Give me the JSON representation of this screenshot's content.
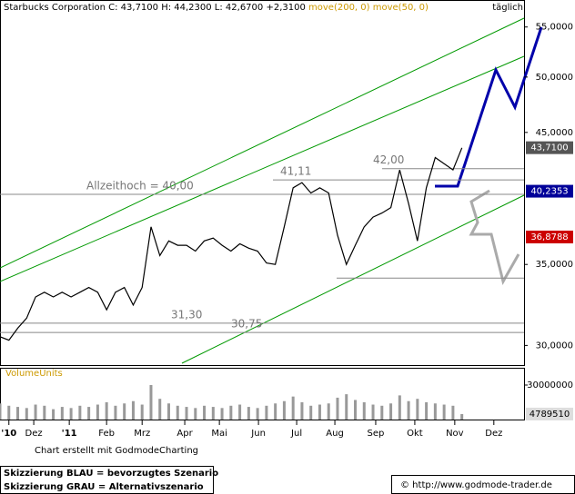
{
  "chart_data": {
    "type": "line",
    "header": {
      "name": "Starbucks Corporation",
      "quote": "C: 43,7100 H: 44,2300 L: 42,6700 +2,3100",
      "ma200": "move(200, 0)",
      "ma50": "move(50, 0)",
      "interval": "täglich"
    },
    "log_scale": true,
    "x": [
      0,
      1,
      2,
      3,
      4,
      5,
      6,
      7,
      8,
      9,
      10,
      11,
      12,
      13,
      14,
      15,
      16,
      17,
      18,
      19,
      20,
      21,
      22,
      23,
      24,
      25,
      26,
      27,
      28,
      29,
      30,
      31,
      32,
      33,
      34,
      35,
      36,
      37,
      38,
      39,
      40,
      41,
      42,
      43,
      44,
      45,
      46,
      47,
      48,
      49,
      50,
      51,
      52
    ],
    "xlim": [
      0,
      59
    ],
    "xticks": [
      {
        "value": 1.0,
        "label": "'10"
      },
      {
        "value": 3.8,
        "label": "Dez"
      },
      {
        "value": 7.8,
        "label": "'11"
      },
      {
        "value": 12,
        "label": "Feb"
      },
      {
        "value": 16,
        "label": "Mrz"
      },
      {
        "value": 20.8,
        "label": "Apr"
      },
      {
        "value": 24.7,
        "label": "Mai"
      },
      {
        "value": 29.1,
        "label": "Jun"
      },
      {
        "value": 33.4,
        "label": "Jul"
      },
      {
        "value": 37.7,
        "label": "Aug"
      },
      {
        "value": 42.3,
        "label": "Sep"
      },
      {
        "value": 46.7,
        "label": "Okt"
      },
      {
        "value": 51.2,
        "label": "Nov"
      },
      {
        "value": 55.6,
        "label": "Dez"
      }
    ],
    "ylim": [
      28.9,
      57.9
    ],
    "yticks": [
      {
        "value": 30,
        "label": "30,0000"
      },
      {
        "value": 35,
        "label": "35,0000"
      },
      {
        "value": 45,
        "label": "45,0000"
      },
      {
        "value": 50,
        "label": "50,0000"
      },
      {
        "value": 55,
        "label": "55,0000"
      }
    ],
    "series": [
      {
        "name": "Starbucks Corporation",
        "color": "#000000",
        "values": [
          30.5,
          30.3,
          31.0,
          31.6,
          32.9,
          33.2,
          32.9,
          33.2,
          32.9,
          33.2,
          33.5,
          33.2,
          32.1,
          33.2,
          33.5,
          32.4,
          33.5,
          37.6,
          35.6,
          36.6,
          36.3,
          36.3,
          35.9,
          36.6,
          36.8,
          36.3,
          35.9,
          36.4,
          36.1,
          35.9,
          35.1,
          35.0,
          37.6,
          40.5,
          40.9,
          40.1,
          40.5,
          40.1,
          37.0,
          35.0,
          36.3,
          37.6,
          38.3,
          38.6,
          39.0,
          41.9,
          39.3,
          36.6,
          40.5,
          42.9,
          42.4,
          41.9,
          43.7
        ]
      },
      {
        "name": "move(200, 0)",
        "color": "#cc0000",
        "values": [
          null,
          null,
          null,
          null,
          null,
          null,
          null,
          null,
          null,
          null,
          null,
          null,
          null,
          null,
          null,
          29.0,
          null,
          null,
          29.4,
          null,
          null,
          29.9,
          null,
          null,
          30.5,
          null,
          null,
          31.2,
          null,
          null,
          31.8,
          null,
          null,
          32.5,
          null,
          null,
          33.8,
          null,
          null,
          34.2,
          null,
          null,
          35.0,
          null,
          null,
          35.6,
          null,
          null,
          36.3,
          null,
          36.8,
          null,
          null
        ]
      },
      {
        "name": "move(50, 0)",
        "color": "#000099",
        "values": [
          null,
          null,
          30.1,
          null,
          null,
          null,
          31.2,
          null,
          null,
          null,
          32.4,
          null,
          null,
          null,
          null,
          32.9,
          null,
          33.7,
          null,
          null,
          34.3,
          null,
          null,
          null,
          null,
          35.1,
          null,
          null,
          null,
          null,
          35.8,
          null,
          36.6,
          null,
          null,
          37.8,
          null,
          null,
          38.0,
          null,
          null,
          38.3,
          null,
          null,
          38.5,
          null,
          null,
          39.4,
          null,
          null,
          40.2353,
          null,
          null
        ]
      }
    ],
    "last_labels": [
      {
        "value": 43.71,
        "label": "43,7100",
        "color": "#555555"
      },
      {
        "value": 40.2353,
        "label": "40,2353",
        "color": "#000099"
      },
      {
        "value": 36.8788,
        "label": "36,8788",
        "color": "#cc0000"
      }
    ],
    "levels": [
      {
        "value": 40.0,
        "label": "Allzeithoch  =  40,00"
      },
      {
        "value": 41.11,
        "label": "41,11"
      },
      {
        "value": 42.0,
        "label": "42,00"
      },
      {
        "value": 31.3,
        "label": "31,30"
      },
      {
        "value": 30.75,
        "label": "30,75"
      },
      {
        "value": 34.1
      }
    ],
    "volume": {
      "title": "VolumeUnits",
      "values": [
        14000000,
        12000000,
        11000000,
        10000000,
        13000000,
        12000000,
        9000000,
        11000000,
        10000000,
        12000000,
        11000000,
        13000000,
        15000000,
        12000000,
        14000000,
        16000000,
        13000000,
        30000000,
        18000000,
        14000000,
        12000000,
        11000000,
        10000000,
        12000000,
        11000000,
        10000000,
        12000000,
        13000000,
        11000000,
        10000000,
        12000000,
        14000000,
        16000000,
        20000000,
        15000000,
        12000000,
        13000000,
        14000000,
        19000000,
        22000000,
        17000000,
        15000000,
        13000000,
        12000000,
        14000000,
        21000000,
        16000000,
        18000000,
        15000000,
        14000000,
        13000000,
        12000000,
        4789510
      ],
      "color": "#999999",
      "ylim": [
        0,
        45000000
      ],
      "yticks": [
        30000000
      ],
      "last_label": "4789510"
    },
    "footer": {
      "credit": "Chart erstellt mit GodmodeCharting",
      "blue": "Skizzierung BLAU = bevorzugtes Szenario",
      "gray": "Skizzierung GRAU = Alternativszenario",
      "url": "© http://www.godmode-trader.de"
    }
  }
}
